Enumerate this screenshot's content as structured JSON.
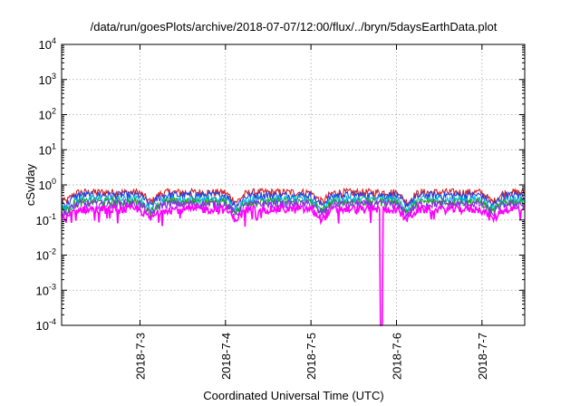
{
  "chart_data": {
    "type": "line",
    "title": "/data/run/goesPlots/archive/2018-07-07/12:00/flux/../bryn/5daysEarthData.plot",
    "xlabel": "Coordinated Universal Time (UTC)",
    "ylabel": "cSv/day",
    "y_scale": "log",
    "ylim": [
      0.0001,
      10000
    ],
    "y_ticks": [
      {
        "value": 0.0001,
        "base": "10",
        "exp": "-4"
      },
      {
        "value": 0.001,
        "base": "10",
        "exp": "-3"
      },
      {
        "value": 0.01,
        "base": "10",
        "exp": "-2"
      },
      {
        "value": 0.1,
        "base": "10",
        "exp": "-1"
      },
      {
        "value": 1,
        "base": "10",
        "exp": "0"
      },
      {
        "value": 10,
        "base": "10",
        "exp": "1"
      },
      {
        "value": 100,
        "base": "10",
        "exp": "2"
      },
      {
        "value": 1000,
        "base": "10",
        "exp": "3"
      },
      {
        "value": 10000,
        "base": "10",
        "exp": "4"
      }
    ],
    "xlim": [
      "2018-07-02T02:00",
      "2018-07-07T12:00"
    ],
    "x_ticks": [
      "2018-7-3",
      "2018-7-4",
      "2018-7-5",
      "2018-7-6",
      "2018-7-7"
    ],
    "grid": true,
    "series": [
      {
        "color": "#d62020",
        "base": 0.6
      },
      {
        "color": "#2040e0",
        "base": 0.5
      },
      {
        "color": "#00b8d8",
        "base": 0.38
      },
      {
        "color": "#20a020",
        "base": 0.32
      },
      {
        "color": "#8a2be2",
        "base": 0.28
      },
      {
        "color": "#ff00ff",
        "base": 0.2,
        "dropout": {
          "start": "2018-07-05T19:30",
          "end": "2018-07-05T20:00",
          "min": 0.0001
        }
      }
    ]
  }
}
